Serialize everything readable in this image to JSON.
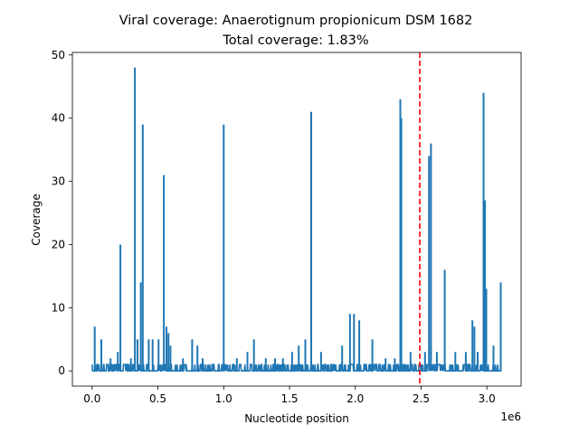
{
  "chart_data": {
    "type": "line",
    "title": "Viral coverage: Anaerotignum propionicum DSM 1682",
    "subtitle": "Total coverage: 1.83%",
    "xlabel": "Nucleotide position",
    "ylabel": "Coverage",
    "x_offset_label": "1e6",
    "xlim": [
      -150000,
      3260000
    ],
    "ylim": [
      -2.4,
      50.4
    ],
    "x_ticks": [
      {
        "value": 0,
        "label": "0.0"
      },
      {
        "value": 500000,
        "label": "0.5"
      },
      {
        "value": 1000000,
        "label": "1.0"
      },
      {
        "value": 1500000,
        "label": "1.5"
      },
      {
        "value": 2000000,
        "label": "2.0"
      },
      {
        "value": 2500000,
        "label": "2.5"
      },
      {
        "value": 3000000,
        "label": "3.0"
      }
    ],
    "y_ticks": [
      {
        "value": 0,
        "label": "0"
      },
      {
        "value": 10,
        "label": "10"
      },
      {
        "value": 20,
        "label": "20"
      },
      {
        "value": 30,
        "label": "30"
      },
      {
        "value": 40,
        "label": "40"
      },
      {
        "value": 50,
        "label": "50"
      }
    ],
    "series_color": "#1f77b4",
    "marker_line": {
      "x": 2490000,
      "color": "#ff0000",
      "style": "dashed"
    },
    "x_range": [
      0,
      3110000
    ],
    "peaks": [
      [
        20000,
        7
      ],
      [
        70000,
        5
      ],
      [
        140000,
        2
      ],
      [
        195000,
        3
      ],
      [
        215000,
        20
      ],
      [
        295000,
        2
      ],
      [
        325000,
        48
      ],
      [
        345000,
        5
      ],
      [
        370000,
        14
      ],
      [
        385000,
        39
      ],
      [
        430000,
        5
      ],
      [
        460000,
        5
      ],
      [
        505000,
        5
      ],
      [
        545000,
        31
      ],
      [
        565000,
        7
      ],
      [
        580000,
        6
      ],
      [
        595000,
        4
      ],
      [
        690000,
        2
      ],
      [
        760000,
        5
      ],
      [
        800000,
        4
      ],
      [
        840000,
        2
      ],
      [
        1000000,
        39
      ],
      [
        1100000,
        2
      ],
      [
        1180000,
        3
      ],
      [
        1230000,
        5
      ],
      [
        1320000,
        2
      ],
      [
        1390000,
        2
      ],
      [
        1450000,
        2
      ],
      [
        1520000,
        3
      ],
      [
        1570000,
        4
      ],
      [
        1620000,
        5
      ],
      [
        1665000,
        41
      ],
      [
        1740000,
        3
      ],
      [
        1900000,
        4
      ],
      [
        1960000,
        9
      ],
      [
        1990000,
        9
      ],
      [
        2030000,
        8
      ],
      [
        2130000,
        5
      ],
      [
        2230000,
        2
      ],
      [
        2300000,
        2
      ],
      [
        2342000,
        43
      ],
      [
        2350000,
        40
      ],
      [
        2420000,
        3
      ],
      [
        2530000,
        3
      ],
      [
        2560000,
        34
      ],
      [
        2575000,
        36
      ],
      [
        2620000,
        3
      ],
      [
        2680000,
        16
      ],
      [
        2760000,
        3
      ],
      [
        2840000,
        3
      ],
      [
        2890000,
        8
      ],
      [
        2905000,
        7
      ],
      [
        2930000,
        3
      ],
      [
        2975000,
        44
      ],
      [
        2985000,
        27
      ],
      [
        2995000,
        13
      ],
      [
        3050000,
        4
      ],
      [
        3105000,
        14
      ]
    ]
  }
}
